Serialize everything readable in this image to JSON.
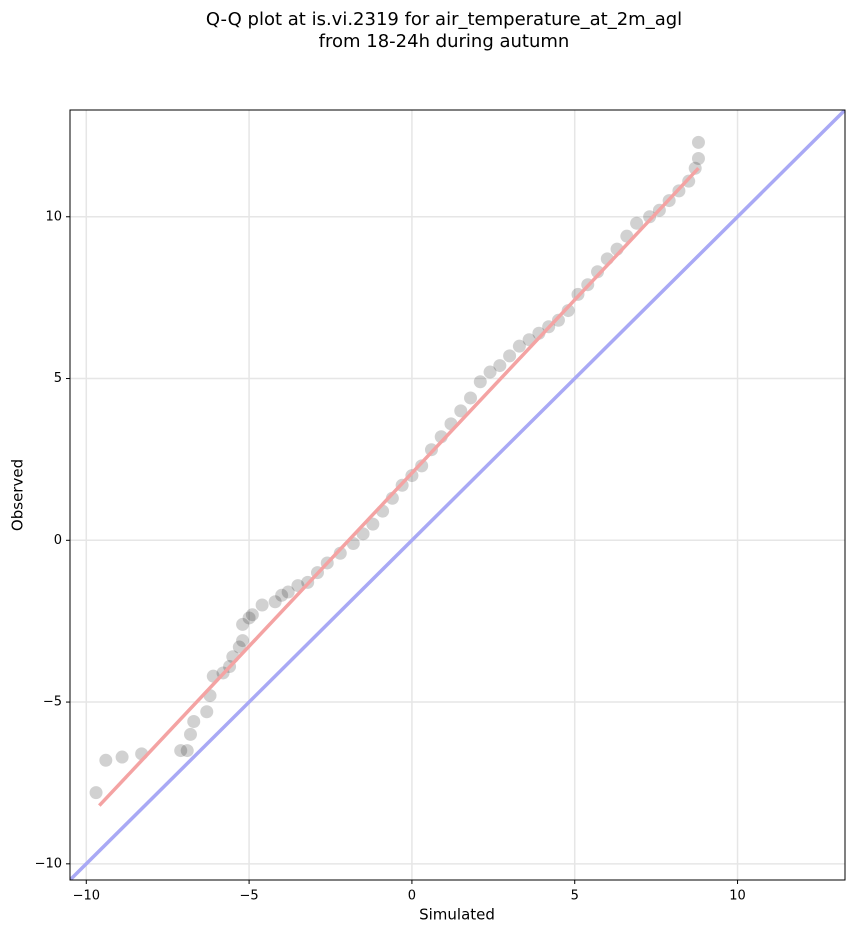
{
  "chart_data": {
    "type": "scatter",
    "title": [
      "Q-Q plot at is.vi.2319 for air_temperature_at_2m_agl",
      "from 18-24h during autumn"
    ],
    "x_label": "Simulated",
    "y_label": "Observed",
    "xlim": [
      -10.5,
      13.3
    ],
    "ylim": [
      -10.5,
      13.3
    ],
    "xticks": [
      {
        "value": -10,
        "label": "−10"
      },
      {
        "value": -5,
        "label": "−5"
      },
      0,
      5,
      10
    ],
    "yticks": [
      {
        "value": -10,
        "label": "−10"
      },
      {
        "value": -5,
        "label": "−5"
      },
      0,
      5,
      10
    ],
    "grid": true,
    "point_color": "#000000",
    "x": [
      -9.7,
      -9.4,
      -8.9,
      -8.3,
      -7.1,
      -6.9,
      -6.8,
      -6.7,
      -6.3,
      -6.2,
      -6.1,
      -5.8,
      -5.6,
      -5.5,
      -5.3,
      -5.2,
      -5.2,
      -5.0,
      -4.9,
      -4.6,
      -4.2,
      -4.0,
      -3.8,
      -3.5,
      -3.2,
      -2.9,
      -2.6,
      -2.2,
      -1.8,
      -1.5,
      -1.2,
      -0.9,
      -0.6,
      -0.3,
      0,
      0.3,
      0.6,
      0.9,
      1.2,
      1.5,
      1.8,
      2.1,
      2.4,
      2.7,
      3.0,
      3.3,
      3.6,
      3.9,
      4.2,
      4.5,
      4.8,
      5.1,
      5.4,
      5.7,
      6.0,
      6.3,
      6.6,
      6.9,
      7.3,
      7.6,
      7.9,
      8.2,
      8.5,
      8.7,
      8.8,
      8.8
    ],
    "y": [
      -7.8,
      -6.8,
      -6.7,
      -6.6,
      -6.5,
      -6.5,
      -6.0,
      -5.6,
      -5.3,
      -4.8,
      -4.2,
      -4.1,
      -3.9,
      -3.6,
      -3.3,
      -3.1,
      -2.6,
      -2.4,
      -2.3,
      -2.0,
      -1.9,
      -1.7,
      -1.6,
      -1.4,
      -1.3,
      -1.0,
      -0.7,
      -0.4,
      -0.1,
      0.2,
      0.5,
      0.9,
      1.3,
      1.7,
      2.0,
      2.3,
      2.8,
      3.2,
      3.6,
      4.0,
      4.4,
      4.9,
      5.2,
      5.4,
      5.7,
      6.0,
      6.2,
      6.4,
      6.6,
      6.8,
      7.1,
      7.6,
      7.9,
      8.3,
      8.7,
      9.0,
      9.4,
      9.8,
      10.0,
      10.2,
      10.5,
      10.8,
      11.1,
      11.5,
      11.8,
      12.3
    ],
    "fit_line": {
      "x": [
        -9.6,
        8.8
      ],
      "y": [
        -8.2,
        11.5
      ],
      "color": "#f4a3a3"
    },
    "reference_line": {
      "x": [
        -10.5,
        13.3
      ],
      "y": [
        -10.5,
        13.3
      ],
      "color": "#a9a9f5"
    }
  }
}
